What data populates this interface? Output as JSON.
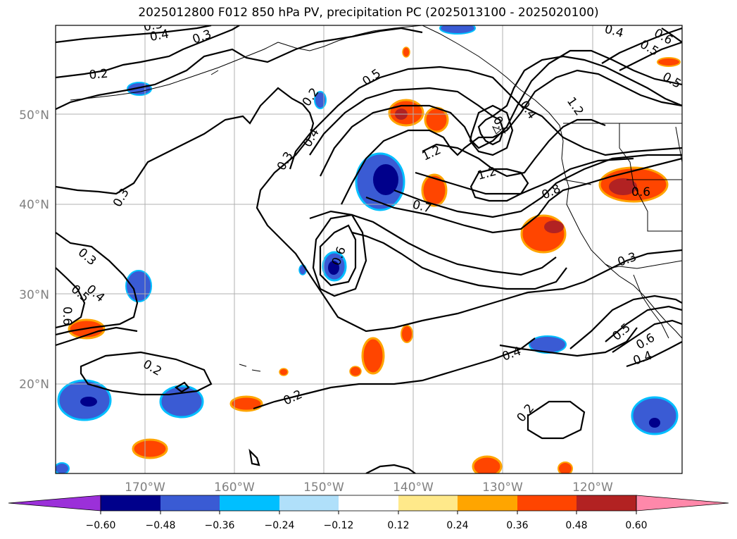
{
  "title": "2025012800 F012 850 hPa PV, precipitation PC (2025013100 - 2025020100)",
  "map": {
    "lat_labels": [
      "50°N",
      "40°N",
      "30°N",
      "20°N"
    ],
    "lon_labels": [
      "170°W",
      "160°W",
      "150°W",
      "140°W",
      "130°W",
      "120°W"
    ],
    "contour_labels": [
      "0.3",
      "0.4",
      "0.3",
      "0.2",
      "0.2",
      "0.5",
      "0.4",
      "0.3",
      "0.3",
      "0.4",
      "1.2",
      "1.2",
      "1.2",
      "0.8",
      "0.6",
      "0.7",
      "0.6",
      "0.3",
      "0.5",
      "0.4",
      "0.6",
      "0.3",
      "0.4",
      "0.5",
      "0.6",
      "0.2",
      "0.4",
      "0.2",
      "0.5",
      "0.6",
      "0.4",
      "0.2",
      "0.4",
      "0.5"
    ]
  },
  "colorbar": {
    "tick_labels": [
      "−0.60",
      "−0.48",
      "−0.36",
      "−0.24",
      "−0.12",
      "0.12",
      "0.24",
      "0.36",
      "0.48",
      "0.60"
    ],
    "colors": [
      "#9b30d9",
      "#00008b",
      "#3a5bd4",
      "#00bfff",
      "#b0e0fa",
      "#ffffff",
      "#ffe98a",
      "#ffa500",
      "#ff4500",
      "#b22222",
      "#ff88aa"
    ]
  }
}
